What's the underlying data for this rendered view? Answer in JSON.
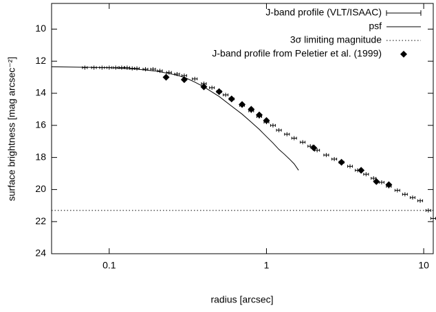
{
  "chart_data": {
    "type": "line",
    "xlabel": "radius [arcsec]",
    "ylabel": "surface brightness [mag arcsec⁻²]",
    "xscale": "log",
    "xlim": [
      0.043,
      11.5
    ],
    "xticks": [
      0.1,
      1,
      10
    ],
    "ylim": [
      24,
      8.4
    ],
    "yticks": [
      10,
      12,
      14,
      16,
      18,
      20,
      22,
      24
    ],
    "legend": "top-right",
    "series": [
      {
        "name": "J-band profile (VLT/ISAAC)",
        "style": "errorbar",
        "color": "#000000",
        "x": [
          0.07,
          0.08,
          0.09,
          0.1,
          0.11,
          0.12,
          0.13,
          0.14,
          0.15,
          0.17,
          0.19,
          0.21,
          0.24,
          0.27,
          0.3,
          0.35,
          0.4,
          0.45,
          0.5,
          0.55,
          0.6,
          0.7,
          0.8,
          0.9,
          1.0,
          1.1,
          1.2,
          1.35,
          1.5,
          1.7,
          1.9,
          2.1,
          2.4,
          2.7,
          3.0,
          3.4,
          3.8,
          4.3,
          4.8,
          5.4,
          6.0,
          6.8,
          7.6,
          8.5,
          9.5,
          10.7,
          11.5
        ],
        "values": [
          12.4,
          12.4,
          12.4,
          12.4,
          12.4,
          12.4,
          12.4,
          12.45,
          12.45,
          12.5,
          12.5,
          12.6,
          12.7,
          12.8,
          12.9,
          13.1,
          13.4,
          13.65,
          13.9,
          14.1,
          14.35,
          14.75,
          15.1,
          15.45,
          15.8,
          16.0,
          16.3,
          16.55,
          16.8,
          17.05,
          17.3,
          17.55,
          17.85,
          18.1,
          18.3,
          18.55,
          18.8,
          19.05,
          19.3,
          19.55,
          19.8,
          20.05,
          20.3,
          20.5,
          20.7,
          21.3,
          21.8
        ]
      },
      {
        "name": "psf",
        "style": "line",
        "color": "#000000",
        "x": [
          0.043,
          0.07,
          0.1,
          0.15,
          0.2,
          0.25,
          0.3,
          0.35,
          0.4,
          0.5,
          0.6,
          0.7,
          0.8,
          0.9,
          1.0,
          1.1,
          1.2,
          1.3,
          1.4,
          1.5,
          1.55,
          1.6
        ],
        "values": [
          12.35,
          12.38,
          12.4,
          12.5,
          12.62,
          12.8,
          13.0,
          13.3,
          13.6,
          14.2,
          14.8,
          15.3,
          15.8,
          16.25,
          16.7,
          17.1,
          17.5,
          17.8,
          18.1,
          18.4,
          18.6,
          18.8
        ]
      },
      {
        "name": "3σ limiting magnitude",
        "style": "dotted",
        "color": "#000000",
        "x": [
          0.043,
          11.5
        ],
        "values": [
          21.3,
          21.3
        ]
      },
      {
        "name": "J-band profile from Peletier et al. (1999)",
        "style": "diamond",
        "color": "#000000",
        "x": [
          0.23,
          0.3,
          0.4,
          0.5,
          0.6,
          0.7,
          0.8,
          0.9,
          1.0,
          2.0,
          3.0,
          4.0,
          5.0,
          6.0
        ],
        "values": [
          13.0,
          13.15,
          13.6,
          13.9,
          14.35,
          14.7,
          15.0,
          15.35,
          15.7,
          17.4,
          18.3,
          18.8,
          19.5,
          19.7
        ]
      }
    ]
  }
}
